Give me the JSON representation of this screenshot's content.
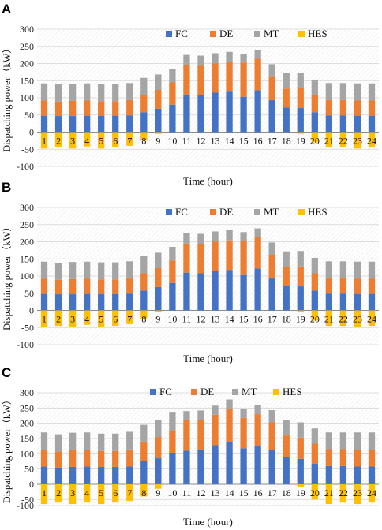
{
  "chart_data": [
    {
      "type": "bar",
      "panel": "A",
      "xlabel": "Time (hour)",
      "ylabel": "Dispatching power（kW）",
      "ylim": [
        -100,
        300
      ],
      "yticks": [
        "300",
        "250",
        "200",
        "150",
        "100",
        "50",
        "0",
        "-50",
        "-100"
      ],
      "categories": [
        "1",
        "2",
        "3",
        "4",
        "5",
        "6",
        "7",
        "8",
        "9",
        "10",
        "11",
        "12",
        "13",
        "14",
        "15",
        "16",
        "17",
        "18",
        "19",
        "20",
        "21",
        "22",
        "23",
        "24"
      ],
      "stacked": true,
      "legend_position": "top-right",
      "series": [
        {
          "name": "FC",
          "color": "#4472c4",
          "values": [
            48,
            47,
            47,
            48,
            48,
            48,
            49,
            58,
            68,
            80,
            110,
            108,
            115,
            118,
            103,
            122,
            93,
            72,
            70,
            58,
            49,
            49,
            48,
            48
          ]
        },
        {
          "name": "DE",
          "color": "#ed7d31",
          "values": [
            44,
            42,
            44,
            44,
            42,
            42,
            44,
            50,
            55,
            65,
            85,
            85,
            85,
            86,
            100,
            92,
            70,
            55,
            58,
            50,
            44,
            44,
            44,
            44
          ]
        },
        {
          "name": "MT",
          "color": "#a5a5a5",
          "values": [
            50,
            50,
            50,
            50,
            50,
            50,
            50,
            50,
            45,
            40,
            30,
            30,
            30,
            30,
            25,
            25,
            35,
            45,
            45,
            45,
            50,
            50,
            50,
            50
          ]
        },
        {
          "name": "HES",
          "color": "#ffc000",
          "values": [
            -48,
            -45,
            -48,
            -42,
            -48,
            -45,
            -40,
            -25,
            -5,
            0,
            0,
            0,
            0,
            0,
            0,
            0,
            0,
            0,
            -5,
            -30,
            -45,
            -45,
            -48,
            -45
          ]
        }
      ]
    },
    {
      "type": "bar",
      "panel": "B",
      "xlabel": "Time (hour)",
      "ylabel": "Dispatching power（kW）",
      "ylim": [
        -100,
        300
      ],
      "yticks": [
        "300",
        "250",
        "200",
        "150",
        "100",
        "50",
        "0",
        "-50",
        "-100"
      ],
      "categories": [
        "1",
        "2",
        "3",
        "4",
        "5",
        "6",
        "7",
        "8",
        "9",
        "10",
        "11",
        "12",
        "13",
        "14",
        "15",
        "16",
        "17",
        "18",
        "19",
        "20",
        "21",
        "22",
        "23",
        "24"
      ],
      "stacked": true,
      "legend_position": "top-right",
      "series": [
        {
          "name": "FC",
          "color": "#4472c4",
          "values": [
            48,
            47,
            47,
            48,
            48,
            48,
            49,
            58,
            68,
            80,
            110,
            108,
            115,
            118,
            103,
            122,
            93,
            72,
            70,
            58,
            49,
            49,
            48,
            48
          ]
        },
        {
          "name": "DE",
          "color": "#ed7d31",
          "values": [
            44,
            42,
            44,
            44,
            42,
            42,
            44,
            50,
            55,
            65,
            85,
            85,
            85,
            86,
            100,
            92,
            70,
            55,
            58,
            50,
            44,
            44,
            44,
            44
          ]
        },
        {
          "name": "MT",
          "color": "#a5a5a5",
          "values": [
            50,
            50,
            50,
            50,
            50,
            50,
            50,
            50,
            45,
            40,
            30,
            30,
            30,
            30,
            25,
            25,
            35,
            45,
            45,
            45,
            50,
            50,
            50,
            50
          ]
        },
        {
          "name": "HES",
          "color": "#ffc000",
          "values": [
            -48,
            -45,
            -48,
            -42,
            -48,
            -45,
            -40,
            -25,
            -5,
            0,
            0,
            0,
            0,
            0,
            0,
            0,
            0,
            0,
            -5,
            -30,
            -45,
            -45,
            -48,
            -45
          ]
        }
      ]
    },
    {
      "type": "bar",
      "panel": "C",
      "xlabel": "Time (hour)",
      "ylabel": "Dispatching power（kW）",
      "ylim": [
        -70,
        300
      ],
      "yticks": [
        "300",
        "250",
        "200",
        "150",
        "100",
        "50",
        "0",
        "-50",
        "-100"
      ],
      "categories": [
        "1",
        "2",
        "3",
        "4",
        "5",
        "6",
        "7",
        "8",
        "9",
        "10",
        "11",
        "12",
        "13",
        "14",
        "15",
        "16",
        "17",
        "18",
        "19",
        "20",
        "21",
        "22",
        "23",
        "24"
      ],
      "stacked": true,
      "legend_position": "top-center",
      "series": [
        {
          "name": "FC",
          "color": "#4472c4",
          "values": [
            58,
            55,
            57,
            58,
            57,
            57,
            58,
            75,
            85,
            102,
            110,
            112,
            128,
            138,
            118,
            125,
            113,
            90,
            83,
            68,
            60,
            60,
            58,
            58
          ]
        },
        {
          "name": "DE",
          "color": "#ed7d31",
          "values": [
            55,
            52,
            55,
            55,
            52,
            52,
            56,
            65,
            70,
            75,
            100,
            100,
            100,
            110,
            100,
            105,
            90,
            70,
            70,
            65,
            55,
            55,
            55,
            55
          ]
        },
        {
          "name": "MT",
          "color": "#a5a5a5",
          "values": [
            57,
            57,
            57,
            57,
            57,
            57,
            58,
            55,
            55,
            58,
            30,
            30,
            30,
            30,
            30,
            30,
            40,
            50,
            50,
            50,
            55,
            55,
            57,
            57
          ]
        },
        {
          "name": "HES",
          "color": "#ffc000",
          "values": [
            -65,
            -60,
            -65,
            -60,
            -65,
            -60,
            -55,
            -40,
            -15,
            0,
            0,
            0,
            0,
            0,
            0,
            0,
            0,
            0,
            -10,
            -50,
            -65,
            -60,
            -65,
            -60
          ]
        }
      ]
    }
  ]
}
